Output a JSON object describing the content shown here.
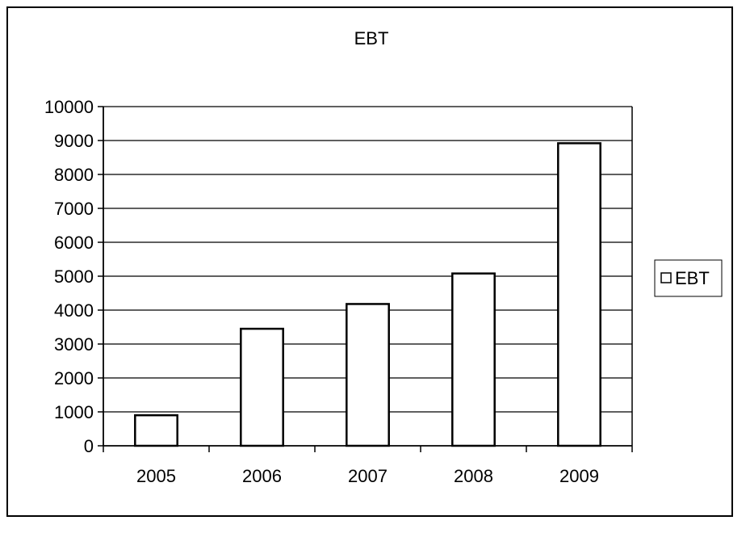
{
  "chart_data": {
    "type": "bar",
    "title": "EBT",
    "xlabel": "",
    "ylabel": "",
    "categories": [
      "2005",
      "2006",
      "2007",
      "2008",
      "2009"
    ],
    "series": [
      {
        "name": "EBT",
        "values": [
          900,
          3450,
          4180,
          5080,
          8920
        ]
      }
    ],
    "ylim": [
      0,
      10000
    ],
    "yticks": [
      "0",
      "1000",
      "2000",
      "3000",
      "4000",
      "5000",
      "6000",
      "7000",
      "8000",
      "9000",
      "10000"
    ],
    "grid": true,
    "legend": "right",
    "colors": {
      "bar_fill": "#ffffff",
      "bar_stroke": "#000000",
      "plot_bg": "#ffffff",
      "grid": "#000000"
    }
  }
}
